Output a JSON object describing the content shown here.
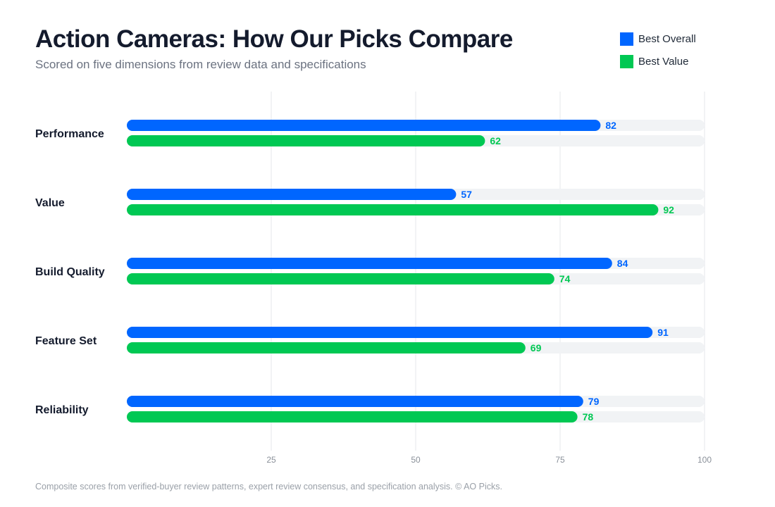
{
  "title": "Action Cameras: How Our Picks Compare",
  "subtitle": "Scored on five dimensions from review data and specifications",
  "footnote": "Composite scores from verified-buyer review patterns, expert review consensus, and specification analysis. © AO Picks.",
  "legend": {
    "placement": "top-right",
    "items": [
      {
        "label": "Best Overall",
        "color": "#0066ff"
      },
      {
        "label": "Best Value",
        "color": "#00c853"
      }
    ]
  },
  "colors": {
    "track": "#f1f3f5",
    "grid": "#e5e7eb",
    "text": "#141b2d",
    "muted": "#8a9099"
  },
  "chart_data": {
    "type": "bar",
    "orientation": "horizontal",
    "categories": [
      "Performance",
      "Value",
      "Build Quality",
      "Feature Set",
      "Reliability"
    ],
    "series": [
      {
        "name": "Best Overall",
        "color": "#0066ff",
        "values": [
          82,
          57,
          84,
          91,
          79
        ]
      },
      {
        "name": "Best Value",
        "color": "#00c853",
        "values": [
          62,
          92,
          74,
          69,
          78
        ]
      }
    ],
    "xlim": [
      0,
      100
    ],
    "xticks": [
      25,
      50,
      75,
      100
    ],
    "grid": true,
    "data_labels": true
  }
}
